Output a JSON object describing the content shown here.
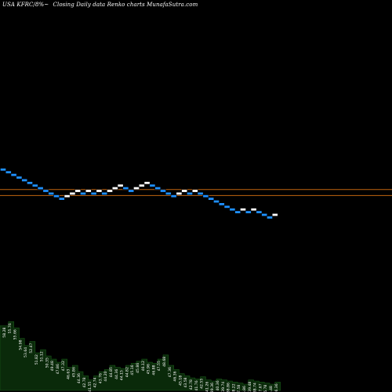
{
  "header": {
    "symbol": "USA KFRC/8%~",
    "description": "Closing Daily data Renko charts MunafaSutra.com"
  },
  "chart_data": {
    "type": "renko",
    "title": "Closing Daily data Renko charts",
    "ylim": [
      25,
      58
    ],
    "grid": false,
    "colors": {
      "up": "#ffffff",
      "down": "#1e90ff",
      "level_line": "#c0640f",
      "volume_fill": "#0a2a0a",
      "volume_line": "#1a5a1a"
    },
    "bricks": [
      {
        "dir": "down",
        "level": 51.8
      },
      {
        "dir": "down",
        "level": 51.0
      },
      {
        "dir": "down",
        "level": 50.2
      },
      {
        "dir": "down",
        "level": 49.4
      },
      {
        "dir": "down",
        "level": 48.6
      },
      {
        "dir": "down",
        "level": 47.8
      },
      {
        "dir": "down",
        "level": 47.0
      },
      {
        "dir": "down",
        "level": 46.2
      },
      {
        "dir": "down",
        "level": 45.4
      },
      {
        "dir": "down",
        "level": 44.6
      },
      {
        "dir": "down",
        "level": 43.8
      },
      {
        "dir": "down",
        "level": 43.0
      },
      {
        "dir": "up",
        "level": 43.8
      },
      {
        "dir": "up",
        "level": 44.6
      },
      {
        "dir": "up",
        "level": 45.4
      },
      {
        "dir": "down",
        "level": 44.6
      },
      {
        "dir": "up",
        "level": 45.4
      },
      {
        "dir": "down",
        "level": 44.6
      },
      {
        "dir": "up",
        "level": 45.4
      },
      {
        "dir": "down",
        "level": 44.6
      },
      {
        "dir": "up",
        "level": 45.4
      },
      {
        "dir": "up",
        "level": 46.2
      },
      {
        "dir": "up",
        "level": 47.0
      },
      {
        "dir": "down",
        "level": 46.2
      },
      {
        "dir": "down",
        "level": 45.4
      },
      {
        "dir": "up",
        "level": 46.2
      },
      {
        "dir": "up",
        "level": 47.0
      },
      {
        "dir": "up",
        "level": 47.8
      },
      {
        "dir": "down",
        "level": 47.0
      },
      {
        "dir": "down",
        "level": 46.2
      },
      {
        "dir": "down",
        "level": 45.4
      },
      {
        "dir": "down",
        "level": 44.6
      },
      {
        "dir": "down",
        "level": 43.8
      },
      {
        "dir": "up",
        "level": 44.6
      },
      {
        "dir": "up",
        "level": 45.4
      },
      {
        "dir": "down",
        "level": 44.6
      },
      {
        "dir": "up",
        "level": 45.4
      },
      {
        "dir": "down",
        "level": 44.6
      },
      {
        "dir": "down",
        "level": 43.8
      },
      {
        "dir": "down",
        "level": 43.0
      },
      {
        "dir": "down",
        "level": 42.2
      },
      {
        "dir": "down",
        "level": 41.4
      },
      {
        "dir": "down",
        "level": 40.6
      },
      {
        "dir": "down",
        "level": 39.8
      },
      {
        "dir": "down",
        "level": 39.0
      },
      {
        "dir": "up",
        "level": 39.8
      },
      {
        "dir": "down",
        "level": 39.0
      },
      {
        "dir": "up",
        "level": 39.8
      },
      {
        "dir": "down",
        "level": 39.0
      },
      {
        "dir": "down",
        "level": 38.2
      },
      {
        "dir": "down",
        "level": 37.4
      },
      {
        "dir": "up",
        "level": 38.2
      }
    ],
    "levels": [
      45.8,
      44.0
    ],
    "brick_labels": [
      "58.28",
      "55.76",
      "55.66",
      "54.98",
      "53.64",
      "52.47",
      "51.82",
      "51.12",
      "50.35",
      "49.48",
      "47.86",
      "47.32",
      "46.63",
      "45.86",
      "44.36",
      "42.78",
      "41.55",
      "42.74",
      "43.76",
      "44.20",
      "44.85",
      "44.36",
      "44.15",
      "44.82",
      "45.16",
      "45.86",
      "46.12",
      "45.96",
      "46.88",
      "47.55",
      "48.68",
      "47.36",
      "46.36",
      "45.18",
      "43.58",
      "42.78",
      "41.76",
      "42.55",
      "41.26",
      "39.36",
      "40.36",
      "39.74",
      "38.86",
      "38.22",
      "37.58",
      "36.86",
      "39.48",
      "38.74",
      "37.67",
      "36.78",
      "35.48",
      "36.36"
    ],
    "volume": [
      0.62,
      0.66,
      0.6,
      0.5,
      0.43,
      0.47,
      0.36,
      0.39,
      0.33,
      0.3,
      0.27,
      0.3,
      0.22,
      0.24,
      0.18,
      0.14,
      0.1,
      0.14,
      0.18,
      0.2,
      0.24,
      0.22,
      0.21,
      0.24,
      0.26,
      0.28,
      0.3,
      0.27,
      0.26,
      0.3,
      0.34,
      0.24,
      0.2,
      0.16,
      0.14,
      0.12,
      0.11,
      0.13,
      0.1,
      0.09,
      0.11,
      0.1,
      0.09,
      0.08,
      0.07,
      0.06,
      0.1,
      0.09,
      0.08,
      0.07,
      0.06,
      0.08
    ]
  }
}
